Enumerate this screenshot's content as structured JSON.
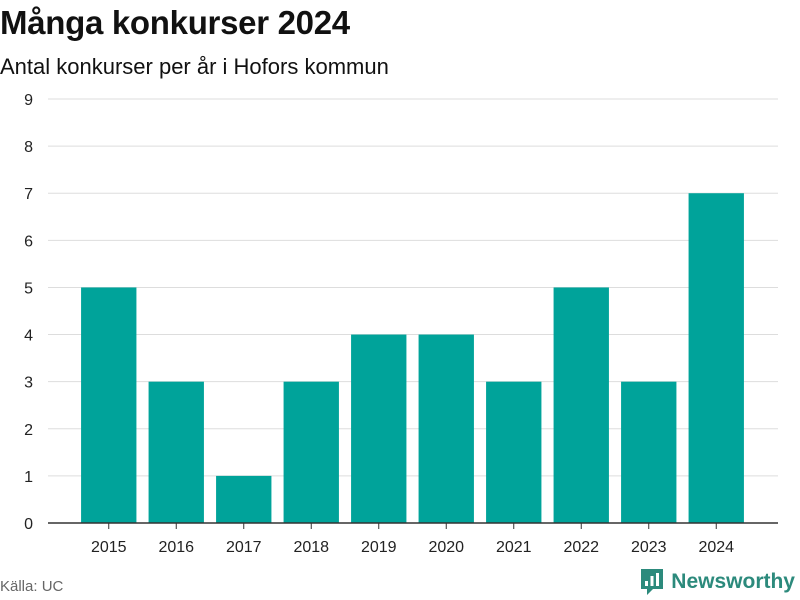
{
  "header": {
    "title": "Många konkurser 2024",
    "subtitle": "Antal konkurser per år i Hofors kommun"
  },
  "footer": {
    "source": "Källa: UC",
    "brand": "Newsworthy"
  },
  "colors": {
    "bar": "#00a39a",
    "grid": "#dddddd",
    "axis": "#333333",
    "brand": "#2c8a7c"
  },
  "icons": {
    "brand_logo": "newsworthy-logo-icon"
  },
  "chart_data": {
    "type": "bar",
    "title": "Många konkurser 2024",
    "subtitle": "Antal konkurser per år i Hofors kommun",
    "xlabel": "",
    "ylabel": "",
    "categories": [
      "2015",
      "2016",
      "2017",
      "2018",
      "2019",
      "2020",
      "2021",
      "2022",
      "2023",
      "2024"
    ],
    "values": [
      5,
      3,
      1,
      3,
      4,
      4,
      3,
      5,
      3,
      7
    ],
    "ylim": [
      0,
      9
    ],
    "yticks": [
      0,
      1,
      2,
      3,
      4,
      5,
      6,
      7,
      8,
      9
    ],
    "grid": true,
    "legend": "none"
  }
}
